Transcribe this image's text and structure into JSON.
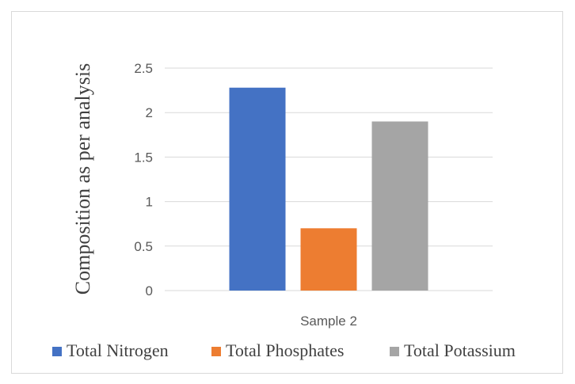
{
  "chart_data": {
    "type": "bar",
    "categories": [
      "Sample 2"
    ],
    "series": [
      {
        "name": "Total Nitrogen",
        "values": [
          2.28
        ],
        "color": "#4472c4"
      },
      {
        "name": "Total Phosphates",
        "values": [
          0.7
        ],
        "color": "#ed7d31"
      },
      {
        "name": "Total Potassium",
        "values": [
          1.9
        ],
        "color": "#a5a5a5"
      }
    ],
    "title": "",
    "xlabel": "",
    "ylabel": "Composition as per analysis",
    "ylim": [
      0,
      2.5
    ],
    "yticks": [
      "0",
      "0.5",
      "1",
      "1.5",
      "2",
      "2.5"
    ],
    "grid": true,
    "legend_position": "bottom"
  }
}
